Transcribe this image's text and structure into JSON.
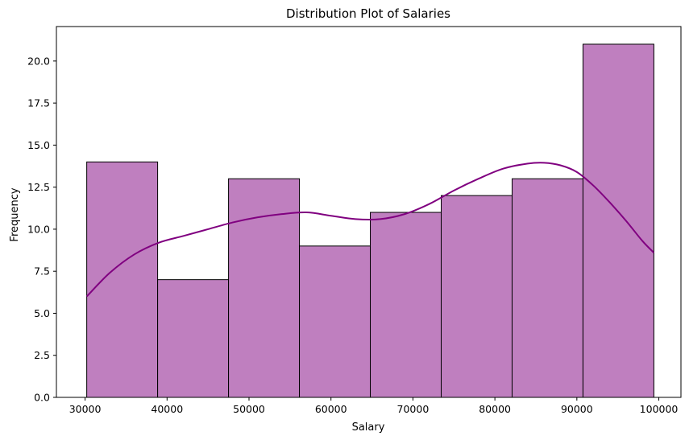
{
  "chart_data": {
    "type": "bar",
    "title": "Distribution Plot of Salaries",
    "xlabel": "Salary",
    "ylabel": "Frequency",
    "xlim": [
      26500,
      102700
    ],
    "ylim": [
      0,
      22.05
    ],
    "x_ticks": [
      30000,
      40000,
      50000,
      60000,
      70000,
      80000,
      90000,
      100000
    ],
    "x_tick_labels": [
      "30000",
      "40000",
      "50000",
      "60000",
      "70000",
      "80000",
      "90000",
      "100000"
    ],
    "y_ticks": [
      0,
      2.5,
      5,
      7.5,
      10,
      12.5,
      15,
      17.5,
      20
    ],
    "y_tick_labels": [
      "0.0",
      "2.5",
      "5.0",
      "7.5",
      "10.0",
      "12.5",
      "15.0",
      "17.5",
      "20.0"
    ],
    "bin_edges": [
      30200,
      38850,
      47500,
      56150,
      64800,
      73450,
      82100,
      90750,
      99400
    ],
    "values": [
      14,
      7,
      13,
      9,
      11,
      12,
      13,
      21
    ],
    "bar_color": "#bf7fbf",
    "bar_edge_color": "#000000",
    "kde": {
      "color": "#800080",
      "x": [
        30200,
        33000,
        36000,
        39000,
        42000,
        45000,
        48000,
        51000,
        54000,
        57000,
        60000,
        63000,
        66000,
        69000,
        72000,
        75000,
        78000,
        81000,
        84000,
        86000,
        88000,
        90000,
        92000,
        94000,
        96000,
        98000,
        99400
      ],
      "y": [
        6.0,
        7.4,
        8.5,
        9.2,
        9.6,
        10.0,
        10.4,
        10.7,
        10.9,
        11.0,
        10.8,
        10.6,
        10.6,
        10.9,
        11.5,
        12.3,
        13.0,
        13.6,
        13.9,
        13.95,
        13.8,
        13.4,
        12.6,
        11.6,
        10.5,
        9.3,
        8.6
      ]
    },
    "grid": false,
    "legend": "none"
  }
}
